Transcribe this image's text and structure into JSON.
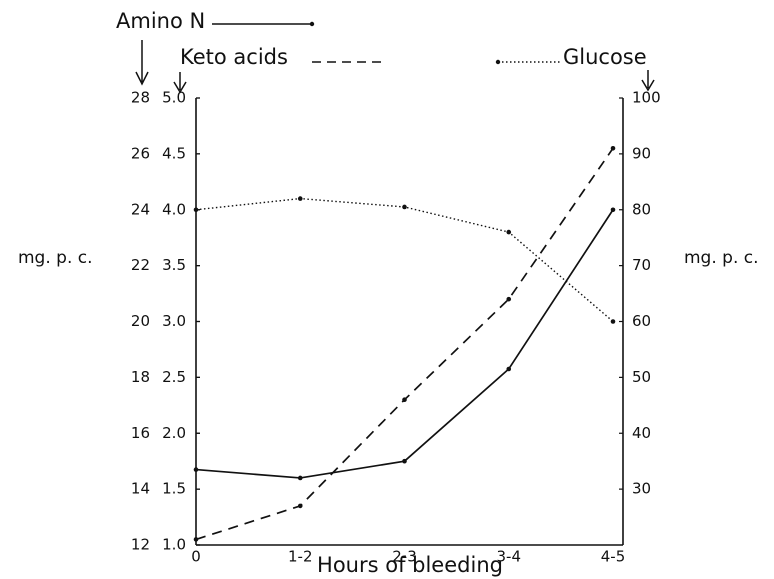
{
  "chart_data": {
    "type": "line",
    "x_label": "Hours of bleeding",
    "y_label": "mg. p. c.",
    "y2_label": "mg. p. c.",
    "categories": [
      "0",
      "1-2",
      "2-3",
      "3-4",
      "4-5"
    ],
    "ylim": [
      12,
      28
    ],
    "yticks": [
      12,
      14,
      16,
      18,
      20,
      22,
      24,
      26,
      28
    ],
    "y3lim": [
      1,
      5
    ],
    "y3ticks": [
      {
        "value": 1,
        "label": "1.0"
      },
      {
        "value": 1.5,
        "label": "1.5"
      },
      {
        "value": 2,
        "label": "2.0"
      },
      {
        "value": 2.5,
        "label": "2.5"
      },
      {
        "value": 3,
        "label": "3.0"
      },
      {
        "value": 3.5,
        "label": "3.5"
      },
      {
        "value": 4,
        "label": "4.0"
      },
      {
        "value": 4.5,
        "label": "4.5"
      },
      {
        "value": 5,
        "label": "5.0"
      }
    ],
    "y2lim": [
      20,
      100
    ],
    "y2ticks": [
      30,
      40,
      50,
      60,
      70,
      80,
      90,
      100
    ],
    "series": [
      {
        "name": "Amino N",
        "color": "#111111",
        "style": "solid",
        "values": [
          14.7,
          14.4,
          15.0,
          18.3,
          24.0
        ]
      },
      {
        "name": "Keto acids",
        "color": "#111111",
        "style": "dashed",
        "axis": "y3",
        "values": [
          1.05,
          1.35,
          2.3,
          3.2,
          4.55
        ]
      },
      {
        "name": "Glucose",
        "color": "#111111",
        "style": "dotted",
        "axis": "y2",
        "values": [
          80,
          82,
          80.5,
          76,
          60
        ]
      }
    ]
  }
}
